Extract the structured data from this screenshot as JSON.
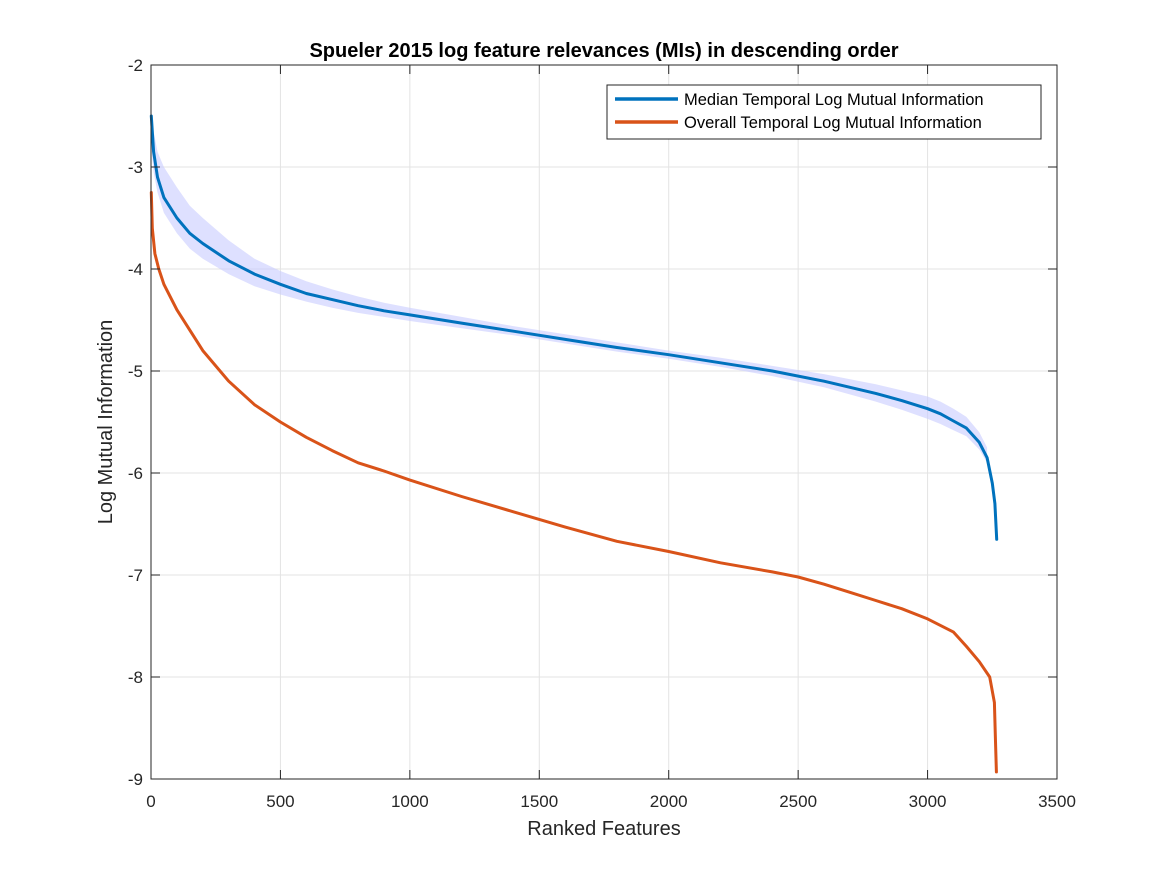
{
  "chart_data": {
    "type": "line",
    "title": "Spueler 2015 log feature relevances (MIs) in descending order",
    "xlabel": "Ranked Features",
    "ylabel": "Log Mutual Information",
    "xlim": [
      0,
      3500
    ],
    "ylim": [
      -9,
      -2
    ],
    "xticks": [
      0,
      500,
      1000,
      1500,
      2000,
      2500,
      3000,
      3500
    ],
    "yticks": [
      -2,
      -3,
      -4,
      -5,
      -6,
      -7,
      -8,
      -9
    ],
    "grid": true,
    "legend_position": "top-right",
    "series": [
      {
        "name": "Median Temporal Log Mutual Information",
        "color": "#0072BD",
        "x": [
          1,
          10,
          25,
          50,
          100,
          150,
          200,
          300,
          400,
          500,
          600,
          700,
          800,
          900,
          1000,
          1200,
          1400,
          1600,
          1800,
          2000,
          2200,
          2400,
          2600,
          2800,
          2900,
          3000,
          3050,
          3100,
          3150,
          3200,
          3230,
          3250,
          3260,
          3267
        ],
        "values": [
          -2.5,
          -2.85,
          -3.1,
          -3.3,
          -3.5,
          -3.65,
          -3.75,
          -3.92,
          -4.05,
          -4.15,
          -4.24,
          -4.3,
          -4.36,
          -4.41,
          -4.45,
          -4.53,
          -4.61,
          -4.69,
          -4.77,
          -4.84,
          -4.92,
          -5.0,
          -5.1,
          -5.22,
          -5.29,
          -5.37,
          -5.42,
          -5.49,
          -5.56,
          -5.7,
          -5.85,
          -6.1,
          -6.3,
          -6.65
        ]
      },
      {
        "name": "Overall Temporal Log Mutual Information",
        "color": "#D95319",
        "x": [
          1,
          5,
          15,
          30,
          50,
          100,
          200,
          300,
          400,
          500,
          600,
          700,
          800,
          900,
          1000,
          1200,
          1400,
          1600,
          1800,
          2000,
          2200,
          2400,
          2500,
          2600,
          2700,
          2800,
          2900,
          3000,
          3100,
          3150,
          3200,
          3240,
          3258,
          3262,
          3266
        ],
        "values": [
          -3.25,
          -3.6,
          -3.85,
          -4.0,
          -4.15,
          -4.4,
          -4.8,
          -5.1,
          -5.33,
          -5.5,
          -5.65,
          -5.78,
          -5.9,
          -5.98,
          -6.07,
          -6.23,
          -6.38,
          -6.53,
          -6.67,
          -6.77,
          -6.88,
          -6.97,
          -7.02,
          -7.09,
          -7.17,
          -7.25,
          -7.33,
          -7.43,
          -7.56,
          -7.7,
          -7.85,
          -8.0,
          -8.25,
          -8.6,
          -8.93
        ]
      }
    ],
    "band": {
      "color": "#C8CCFF",
      "x": [
        1,
        10,
        25,
        50,
        100,
        150,
        200,
        300,
        400,
        500,
        600,
        700,
        800,
        900,
        1000,
        1200,
        1400,
        1600,
        1800,
        2000,
        2200,
        2400,
        2600,
        2800,
        2900,
        3000,
        3050,
        3100,
        3150,
        3200,
        3230
      ],
      "upper": [
        -2.45,
        -2.65,
        -2.85,
        -3.0,
        -3.2,
        -3.38,
        -3.5,
        -3.72,
        -3.9,
        -4.02,
        -4.12,
        -4.2,
        -4.27,
        -4.33,
        -4.38,
        -4.47,
        -4.56,
        -4.64,
        -4.72,
        -4.8,
        -4.87,
        -4.95,
        -5.03,
        -5.13,
        -5.19,
        -5.25,
        -5.3,
        -5.37,
        -5.45,
        -5.6,
        -5.75
      ],
      "lower": [
        -2.8,
        -3.05,
        -3.25,
        -3.45,
        -3.65,
        -3.8,
        -3.9,
        -4.05,
        -4.17,
        -4.25,
        -4.32,
        -4.38,
        -4.43,
        -4.47,
        -4.51,
        -4.58,
        -4.65,
        -4.73,
        -4.81,
        -4.88,
        -4.96,
        -5.05,
        -5.16,
        -5.3,
        -5.38,
        -5.47,
        -5.52,
        -5.58,
        -5.64,
        -5.77,
        -5.9
      ]
    }
  }
}
